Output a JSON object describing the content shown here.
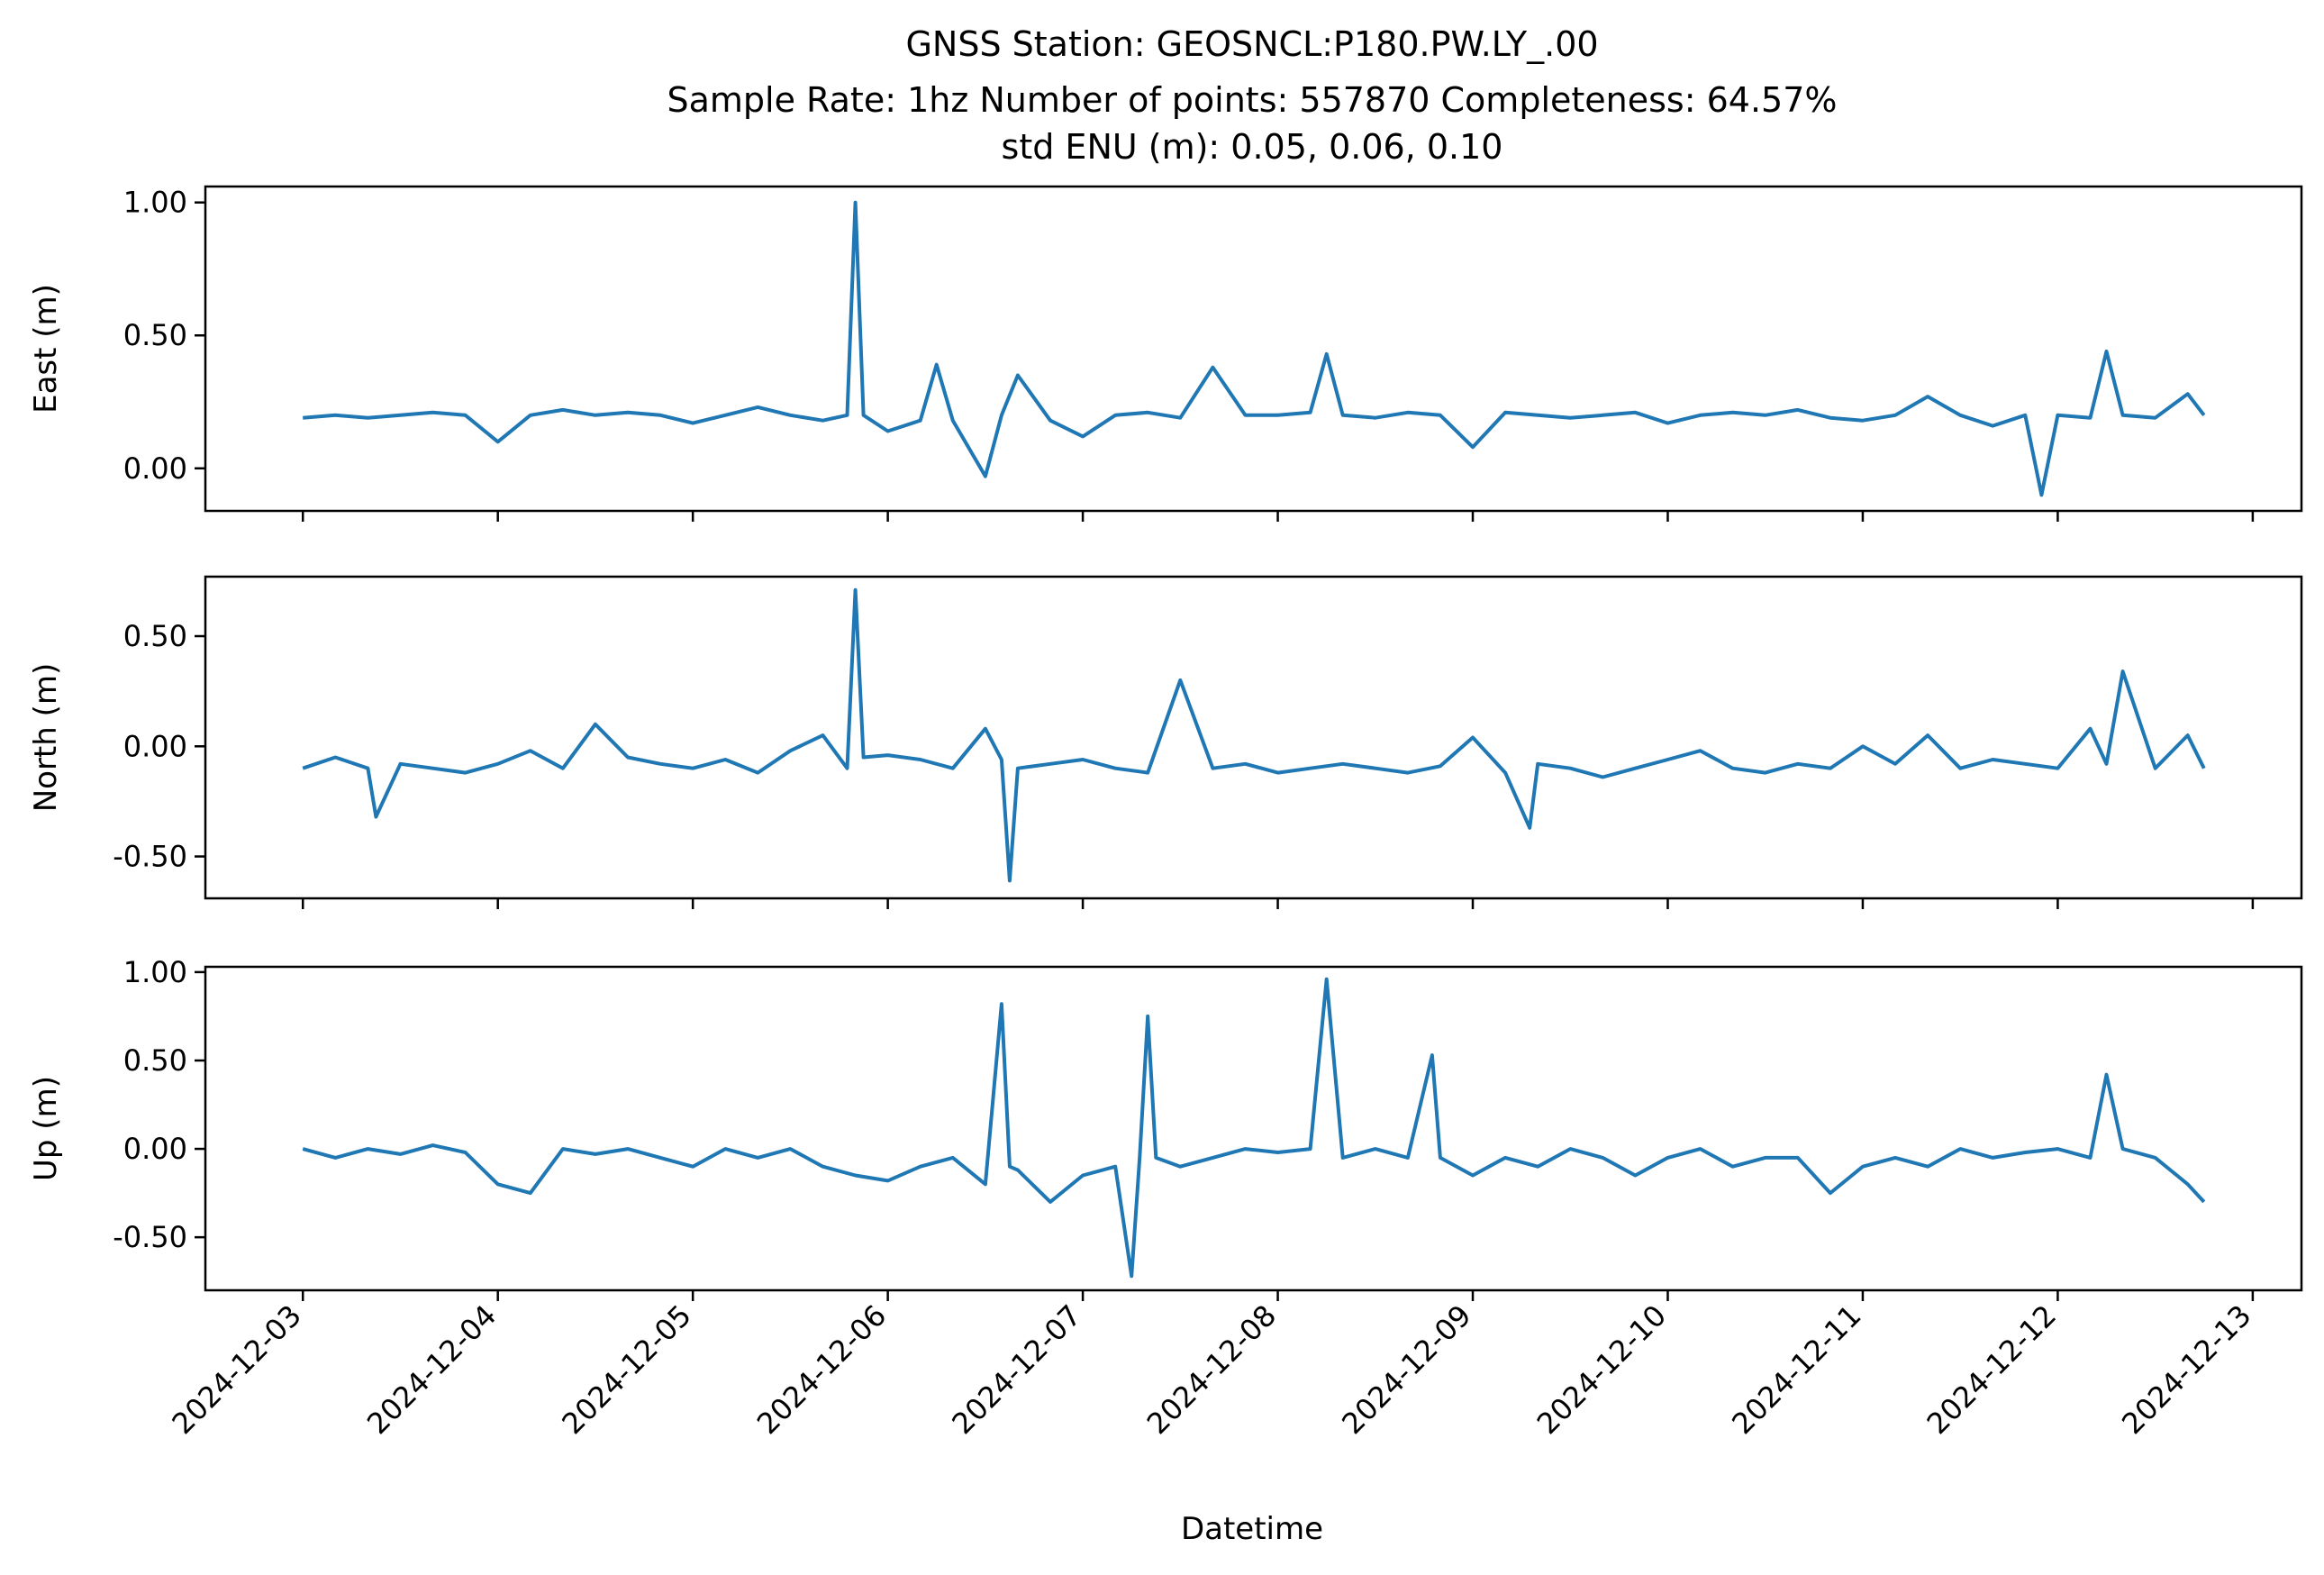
{
  "figure": {
    "title_lines": [
      "GNSS Station: GEOSNCL:P180.PW.LY_.00",
      "Sample Rate: 1hz   Number of points: 557870    Completeness:  64.57%",
      "std ENU (m):  0.05, 0.06, 0.10"
    ],
    "xlabel": "Datetime",
    "line_color": "#1f77b4"
  },
  "chart_data": [
    {
      "type": "line",
      "ylabel": "East (m)",
      "ylim": [
        -0.16,
        1.06
      ],
      "yticks": [
        0.0,
        0.5,
        1.0
      ],
      "yticklabels": [
        "0.00",
        "0.50",
        "1.00"
      ],
      "xlim": [
        "2024-12-02T12:00",
        "2024-12-13T06:00"
      ],
      "xtick_labels": [],
      "series": [
        {
          "color": "#1f77b4",
          "x": [
            "2024-12-03T00:00",
            "2024-12-03T04:00",
            "2024-12-03T08:00",
            "2024-12-03T12:00",
            "2024-12-03T16:00",
            "2024-12-03T20:00",
            "2024-12-04T00:00",
            "2024-12-04T04:00",
            "2024-12-04T08:00",
            "2024-12-04T12:00",
            "2024-12-04T16:00",
            "2024-12-04T20:00",
            "2024-12-05T00:00",
            "2024-12-05T04:00",
            "2024-12-05T08:00",
            "2024-12-05T12:00",
            "2024-12-05T16:00",
            "2024-12-05T19:00",
            "2024-12-05T20:00",
            "2024-12-05T21:00",
            "2024-12-06T00:00",
            "2024-12-06T04:00",
            "2024-12-06T06:00",
            "2024-12-06T08:00",
            "2024-12-06T12:00",
            "2024-12-06T14:00",
            "2024-12-06T16:00",
            "2024-12-06T20:00",
            "2024-12-07T00:00",
            "2024-12-07T04:00",
            "2024-12-07T08:00",
            "2024-12-07T12:00",
            "2024-12-07T16:00",
            "2024-12-07T20:00",
            "2024-12-08T00:00",
            "2024-12-08T04:00",
            "2024-12-08T06:00",
            "2024-12-08T08:00",
            "2024-12-08T12:00",
            "2024-12-08T16:00",
            "2024-12-08T20:00",
            "2024-12-09T00:00",
            "2024-12-09T04:00",
            "2024-12-09T08:00",
            "2024-12-09T12:00",
            "2024-12-09T16:00",
            "2024-12-09T20:00",
            "2024-12-10T00:00",
            "2024-12-10T04:00",
            "2024-12-10T08:00",
            "2024-12-10T12:00",
            "2024-12-10T16:00",
            "2024-12-10T20:00",
            "2024-12-11T00:00",
            "2024-12-11T04:00",
            "2024-12-11T08:00",
            "2024-12-11T12:00",
            "2024-12-11T16:00",
            "2024-12-11T20:00",
            "2024-12-11T22:00",
            "2024-12-12T00:00",
            "2024-12-12T04:00",
            "2024-12-12T06:00",
            "2024-12-12T08:00",
            "2024-12-12T12:00",
            "2024-12-12T16:00",
            "2024-12-12T18:00"
          ],
          "y": [
            0.19,
            0.2,
            0.19,
            0.2,
            0.21,
            0.2,
            0.1,
            0.2,
            0.22,
            0.2,
            0.21,
            0.2,
            0.17,
            0.2,
            0.23,
            0.2,
            0.18,
            0.2,
            1.0,
            0.2,
            0.14,
            0.18,
            0.39,
            0.18,
            -0.03,
            0.2,
            0.35,
            0.18,
            0.12,
            0.2,
            0.21,
            0.19,
            0.38,
            0.2,
            0.2,
            0.21,
            0.43,
            0.2,
            0.19,
            0.21,
            0.2,
            0.08,
            0.21,
            0.2,
            0.19,
            0.2,
            0.21,
            0.17,
            0.2,
            0.21,
            0.2,
            0.22,
            0.19,
            0.18,
            0.2,
            0.27,
            0.2,
            0.16,
            0.2,
            -0.1,
            0.2,
            0.19,
            0.44,
            0.2,
            0.19,
            0.28,
            0.2
          ]
        }
      ]
    },
    {
      "type": "line",
      "ylabel": "North (m)",
      "ylim": [
        -0.69,
        0.77
      ],
      "yticks": [
        -0.5,
        0.0,
        0.5
      ],
      "yticklabels": [
        "-0.50",
        "0.00",
        "0.50"
      ],
      "xlim": [
        "2024-12-02T12:00",
        "2024-12-13T06:00"
      ],
      "xtick_labels": [],
      "series": [
        {
          "color": "#1f77b4",
          "x": [
            "2024-12-03T00:00",
            "2024-12-03T04:00",
            "2024-12-03T08:00",
            "2024-12-03T09:00",
            "2024-12-03T12:00",
            "2024-12-03T16:00",
            "2024-12-03T20:00",
            "2024-12-04T00:00",
            "2024-12-04T04:00",
            "2024-12-04T08:00",
            "2024-12-04T12:00",
            "2024-12-04T16:00",
            "2024-12-04T20:00",
            "2024-12-05T00:00",
            "2024-12-05T04:00",
            "2024-12-05T08:00",
            "2024-12-05T12:00",
            "2024-12-05T16:00",
            "2024-12-05T19:00",
            "2024-12-05T20:00",
            "2024-12-05T21:00",
            "2024-12-06T00:00",
            "2024-12-06T04:00",
            "2024-12-06T08:00",
            "2024-12-06T12:00",
            "2024-12-06T14:00",
            "2024-12-06T15:00",
            "2024-12-06T16:00",
            "2024-12-06T20:00",
            "2024-12-07T00:00",
            "2024-12-07T04:00",
            "2024-12-07T08:00",
            "2024-12-07T12:00",
            "2024-12-07T16:00",
            "2024-12-07T20:00",
            "2024-12-08T00:00",
            "2024-12-08T04:00",
            "2024-12-08T08:00",
            "2024-12-08T12:00",
            "2024-12-08T16:00",
            "2024-12-08T20:00",
            "2024-12-09T00:00",
            "2024-12-09T04:00",
            "2024-12-09T07:00",
            "2024-12-09T08:00",
            "2024-12-09T12:00",
            "2024-12-09T16:00",
            "2024-12-09T20:00",
            "2024-12-10T00:00",
            "2024-12-10T04:00",
            "2024-12-10T08:00",
            "2024-12-10T12:00",
            "2024-12-10T16:00",
            "2024-12-10T20:00",
            "2024-12-11T00:00",
            "2024-12-11T04:00",
            "2024-12-11T08:00",
            "2024-12-11T12:00",
            "2024-12-11T16:00",
            "2024-12-11T20:00",
            "2024-12-12T00:00",
            "2024-12-12T04:00",
            "2024-12-12T06:00",
            "2024-12-12T08:00",
            "2024-12-12T12:00",
            "2024-12-12T16:00",
            "2024-12-12T18:00"
          ],
          "y": [
            -0.1,
            -0.05,
            -0.1,
            -0.32,
            -0.08,
            -0.1,
            -0.12,
            -0.08,
            -0.02,
            -0.1,
            0.1,
            -0.05,
            -0.08,
            -0.1,
            -0.06,
            -0.12,
            -0.02,
            0.05,
            -0.1,
            0.71,
            -0.05,
            -0.04,
            -0.06,
            -0.1,
            0.08,
            -0.06,
            -0.61,
            -0.1,
            -0.08,
            -0.06,
            -0.1,
            -0.12,
            0.3,
            -0.1,
            -0.08,
            -0.12,
            -0.1,
            -0.08,
            -0.1,
            -0.12,
            -0.09,
            0.04,
            -0.12,
            -0.37,
            -0.08,
            -0.1,
            -0.14,
            -0.1,
            -0.06,
            -0.02,
            -0.1,
            -0.12,
            -0.08,
            -0.1,
            0.0,
            -0.08,
            0.05,
            -0.1,
            -0.06,
            -0.08,
            -0.1,
            0.08,
            -0.08,
            0.34,
            -0.1,
            0.05,
            -0.1
          ]
        }
      ]
    },
    {
      "type": "line",
      "ylabel": "Up (m)",
      "ylim": [
        -0.8,
        1.03
      ],
      "yticks": [
        -0.5,
        0.0,
        0.5,
        1.0
      ],
      "yticklabels": [
        "-0.50",
        "0.00",
        "0.50",
        "1.00"
      ],
      "xlim": [
        "2024-12-02T12:00",
        "2024-12-13T06:00"
      ],
      "xtick_labels": [
        "2024-12-03",
        "2024-12-04",
        "2024-12-05",
        "2024-12-06",
        "2024-12-07",
        "2024-12-08",
        "2024-12-09",
        "2024-12-10",
        "2024-12-11",
        "2024-12-12",
        "2024-12-13"
      ],
      "series": [
        {
          "color": "#1f77b4",
          "x": [
            "2024-12-03T00:00",
            "2024-12-03T04:00",
            "2024-12-03T08:00",
            "2024-12-03T12:00",
            "2024-12-03T16:00",
            "2024-12-03T20:00",
            "2024-12-04T00:00",
            "2024-12-04T04:00",
            "2024-12-04T08:00",
            "2024-12-04T12:00",
            "2024-12-04T16:00",
            "2024-12-04T20:00",
            "2024-12-05T00:00",
            "2024-12-05T04:00",
            "2024-12-05T08:00",
            "2024-12-05T12:00",
            "2024-12-05T16:00",
            "2024-12-05T20:00",
            "2024-12-06T00:00",
            "2024-12-06T04:00",
            "2024-12-06T08:00",
            "2024-12-06T12:00",
            "2024-12-06T14:00",
            "2024-12-06T15:00",
            "2024-12-06T16:00",
            "2024-12-06T20:00",
            "2024-12-07T00:00",
            "2024-12-07T04:00",
            "2024-12-07T06:00",
            "2024-12-07T07:00",
            "2024-12-07T08:00",
            "2024-12-07T09:00",
            "2024-12-07T12:00",
            "2024-12-07T16:00",
            "2024-12-07T20:00",
            "2024-12-08T00:00",
            "2024-12-08T04:00",
            "2024-12-08T06:00",
            "2024-12-08T08:00",
            "2024-12-08T12:00",
            "2024-12-08T16:00",
            "2024-12-08T19:00",
            "2024-12-08T20:00",
            "2024-12-09T00:00",
            "2024-12-09T04:00",
            "2024-12-09T08:00",
            "2024-12-09T12:00",
            "2024-12-09T16:00",
            "2024-12-09T20:00",
            "2024-12-10T00:00",
            "2024-12-10T04:00",
            "2024-12-10T08:00",
            "2024-12-10T12:00",
            "2024-12-10T16:00",
            "2024-12-10T20:00",
            "2024-12-11T00:00",
            "2024-12-11T04:00",
            "2024-12-11T08:00",
            "2024-12-11T12:00",
            "2024-12-11T16:00",
            "2024-12-11T20:00",
            "2024-12-12T00:00",
            "2024-12-12T04:00",
            "2024-12-12T06:00",
            "2024-12-12T08:00",
            "2024-12-12T12:00",
            "2024-12-12T16:00",
            "2024-12-12T18:00"
          ],
          "y": [
            0.0,
            -0.05,
            0.0,
            -0.03,
            0.02,
            -0.02,
            -0.2,
            -0.25,
            0.0,
            -0.03,
            0.0,
            -0.05,
            -0.1,
            0.0,
            -0.05,
            0.0,
            -0.1,
            -0.15,
            -0.18,
            -0.1,
            -0.05,
            -0.2,
            0.82,
            -0.1,
            -0.12,
            -0.3,
            -0.15,
            -0.1,
            -0.72,
            -0.05,
            0.75,
            -0.05,
            -0.1,
            -0.05,
            0.0,
            -0.02,
            0.0,
            0.96,
            -0.05,
            0.0,
            -0.05,
            0.53,
            -0.05,
            -0.15,
            -0.05,
            -0.1,
            0.0,
            -0.05,
            -0.15,
            -0.05,
            0.0,
            -0.1,
            -0.05,
            -0.05,
            -0.25,
            -0.1,
            -0.05,
            -0.1,
            0.0,
            -0.05,
            -0.02,
            0.0,
            -0.05,
            0.42,
            0.0,
            -0.05,
            -0.2,
            -0.3
          ]
        }
      ]
    }
  ]
}
